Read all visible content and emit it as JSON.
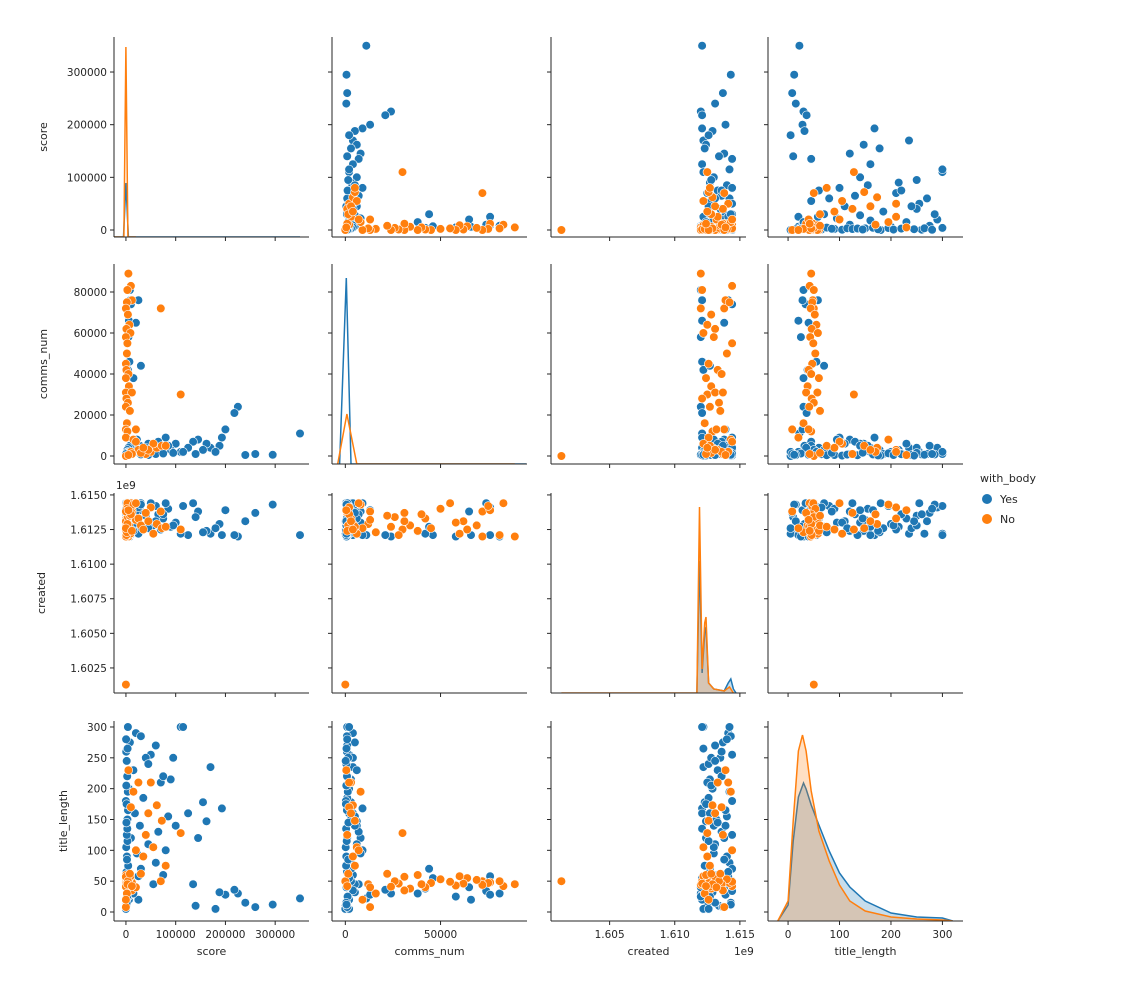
{
  "chart_data": {
    "type": "scatter",
    "kind": "pairplot",
    "title": "",
    "variables": [
      {
        "name": "score",
        "label": "score",
        "x_range": [
          -24000,
          368000
        ],
        "y_range": [
          -13300,
          366500
        ],
        "x_ticks": [
          0,
          100000,
          200000,
          300000
        ],
        "x_tick_labels": [
          "0",
          "100000",
          "200000",
          "300000"
        ],
        "y_ticks": [
          0,
          100000,
          200000,
          300000
        ],
        "y_tick_labels": [
          "0",
          "100000",
          "200000",
          "300000"
        ],
        "offset": ""
      },
      {
        "name": "comms_num",
        "label": "comms_num",
        "x_range": [
          -7000,
          95400
        ],
        "y_range": [
          -3900,
          93660
        ],
        "x_ticks": [
          0,
          50000
        ],
        "x_tick_labels": [
          "0",
          "50000"
        ],
        "y_ticks": [
          0,
          20000,
          40000,
          60000,
          80000
        ],
        "y_tick_labels": [
          "0",
          "20000",
          "40000",
          "60000",
          "80000"
        ],
        "offset": ""
      },
      {
        "name": "created",
        "label": "created",
        "x_range": [
          1.6005,
          1.61547
        ],
        "y_range": [
          1.60069,
          1.61514
        ],
        "x_ticks": [
          1.605,
          1.61,
          1.615
        ],
        "x_tick_labels": [
          "1.605",
          "1.610",
          "1.615"
        ],
        "y_ticks": [
          1.6025,
          1.605,
          1.6075,
          1.61,
          1.6125,
          1.615
        ],
        "y_tick_labels": [
          "1.6025",
          "1.6050",
          "1.6075",
          "1.6100",
          "1.6125",
          "1.6150"
        ],
        "offset": "1e9"
      },
      {
        "name": "title_length",
        "label": "title_length",
        "x_range": [
          -39,
          340
        ],
        "y_range": [
          -14.6,
          309.7
        ],
        "x_ticks": [
          0,
          100,
          200,
          300
        ],
        "x_tick_labels": [
          "0",
          "100",
          "200",
          "300"
        ],
        "y_ticks": [
          0,
          50,
          100,
          150,
          200,
          250,
          300
        ],
        "y_tick_labels": [
          "0",
          "50",
          "100",
          "150",
          "200",
          "250",
          "300"
        ],
        "offset": ""
      }
    ],
    "hue": {
      "title": "with_body",
      "levels": [
        {
          "label": "Yes",
          "color": "#1f77b4"
        },
        {
          "label": "No",
          "color": "#ff7f0e"
        }
      ]
    },
    "points_columns": [
      "score",
      "comms_num",
      "created",
      "title_length"
    ],
    "points": {
      "Yes": [
        [
          350000,
          11000,
          1.6121,
          22
        ],
        [
          225000,
          24000,
          1.612,
          30
        ],
        [
          218000,
          21000,
          1.6121,
          36
        ],
        [
          200000,
          13000,
          1.6139,
          28
        ],
        [
          193000,
          9000,
          1.6121,
          168
        ],
        [
          188000,
          5000,
          1.6129,
          32
        ],
        [
          170000,
          4000,
          1.6122,
          235
        ],
        [
          162000,
          6000,
          1.6124,
          147
        ],
        [
          155000,
          3000,
          1.6123,
          178
        ],
        [
          145000,
          8000,
          1.6138,
          120
        ],
        [
          135000,
          7000,
          1.6144,
          45
        ],
        [
          125000,
          4000,
          1.6121,
          160
        ],
        [
          110000,
          2000,
          1.6122,
          300
        ],
        [
          100000,
          6000,
          1.613,
          140
        ],
        [
          90000,
          3000,
          1.6127,
          215
        ],
        [
          85000,
          5000,
          1.614,
          155
        ],
        [
          80000,
          9000,
          1.6144,
          100
        ],
        [
          75000,
          4000,
          1.6133,
          60
        ],
        [
          70000,
          2000,
          1.6125,
          210
        ],
        [
          65000,
          7000,
          1.6136,
          130
        ],
        [
          60000,
          3000,
          1.6142,
          80
        ],
        [
          55000,
          5000,
          1.6128,
          45
        ],
        [
          50000,
          2000,
          1.6144,
          255
        ],
        [
          45000,
          6000,
          1.6131,
          110
        ],
        [
          40000,
          4000,
          1.6135,
          250
        ],
        [
          35000,
          1000,
          1.6126,
          185
        ],
        [
          30000,
          3000,
          1.6144,
          70
        ],
        [
          28000,
          5000,
          1.6139,
          140
        ],
        [
          25000,
          2000,
          1.6122,
          20
        ],
        [
          22000,
          8000,
          1.613,
          95
        ],
        [
          20000,
          4000,
          1.6141,
          290
        ],
        [
          18000,
          2000,
          1.6127,
          160
        ],
        [
          15000,
          6000,
          1.6133,
          230
        ],
        [
          12000,
          3000,
          1.6144,
          50
        ],
        [
          10000,
          1000,
          1.6124,
          120
        ],
        [
          8000,
          5000,
          1.6137,
          275
        ],
        [
          6000,
          2000,
          1.6129,
          200
        ],
        [
          5000,
          4000,
          1.6144,
          35
        ],
        [
          4000,
          1000,
          1.6121,
          300
        ],
        [
          3000,
          3000,
          1.6132,
          150
        ],
        [
          2000,
          500,
          1.614,
          90
        ],
        [
          1000,
          200,
          1.6125,
          10
        ],
        [
          500,
          800,
          1.6136,
          260
        ],
        [
          0,
          0,
          1.6122,
          5
        ],
        [
          0,
          300,
          1.6144,
          180
        ],
        [
          8000,
          81000,
          1.612,
          30
        ],
        [
          10000,
          74000,
          1.6144,
          34
        ],
        [
          9000,
          76000,
          1.6121,
          28
        ],
        [
          6000,
          66000,
          1.6121,
          20
        ],
        [
          5000,
          58000,
          1.612,
          25
        ],
        [
          7000,
          46000,
          1.6121,
          55
        ],
        [
          4000,
          42000,
          1.6122,
          38
        ],
        [
          3000,
          16000,
          1.6123,
          30
        ],
        [
          30000,
          44000,
          1.6127,
          70
        ],
        [
          20000,
          65000,
          1.6138,
          40
        ],
        [
          25000,
          76000,
          1.6141,
          58
        ],
        [
          15000,
          38000,
          1.6124,
          30
        ],
        [
          115000,
          2000,
          1.6142,
          300
        ],
        [
          60000,
          1000,
          1.6131,
          270
        ],
        [
          45000,
          500,
          1.6126,
          240
        ],
        [
          95000,
          1500,
          1.6128,
          250
        ],
        [
          30000,
          800,
          1.6143,
          285
        ],
        [
          75000,
          1200,
          1.6136,
          220
        ],
        [
          1500,
          300,
          1.6143,
          15
        ],
        [
          2500,
          1200,
          1.6127,
          25
        ],
        [
          800,
          600,
          1.612,
          40
        ],
        [
          3500,
          2000,
          1.6135,
          55
        ],
        [
          1200,
          900,
          1.6141,
          65
        ],
        [
          4500,
          400,
          1.6123,
          75
        ],
        [
          2200,
          1500,
          1.6138,
          85
        ],
        [
          600,
          200,
          1.613,
          105
        ],
        [
          3200,
          700,
          1.6126,
          115
        ],
        [
          1800,
          1100,
          1.6144,
          125
        ],
        [
          2800,
          400,
          1.6121,
          135
        ],
        [
          900,
          1600,
          1.6133,
          145
        ],
        [
          4200,
          800,
          1.6139,
          165
        ],
        [
          1300,
          300,
          1.6124,
          175
        ],
        [
          3800,
          1300,
          1.6142,
          195
        ],
        [
          700,
          500,
          1.6128,
          205
        ],
        [
          2600,
          900,
          1.6136,
          220
        ],
        [
          1600,
          200,
          1.6131,
          245
        ],
        [
          3300,
          600,
          1.6122,
          265
        ],
        [
          400,
          1000,
          1.614,
          280
        ],
        [
          140000,
          1000,
          1.6134,
          10
        ],
        [
          180000,
          2000,
          1.6126,
          5
        ],
        [
          240000,
          500,
          1.6131,
          15
        ],
        [
          260000,
          1000,
          1.6137,
          8
        ],
        [
          295000,
          600,
          1.6143,
          12
        ]
      ],
      "No": [
        [
          0,
          0,
          1.6013,
          50
        ],
        [
          110000,
          30000,
          1.6125,
          128
        ],
        [
          70000,
          72000,
          1.6138,
          50
        ],
        [
          5000,
          89000,
          1.612,
          45
        ],
        [
          10000,
          83000,
          1.6144,
          42
        ],
        [
          3000,
          81000,
          1.6121,
          50
        ],
        [
          12000,
          76000,
          1.6139,
          48
        ],
        [
          2000,
          75000,
          1.6142,
          47
        ],
        [
          0,
          72000,
          1.612,
          44
        ],
        [
          4000,
          69000,
          1.6128,
          52
        ],
        [
          7000,
          64000,
          1.6125,
          55
        ],
        [
          1000,
          62000,
          1.6131,
          46
        ],
        [
          9000,
          60000,
          1.6122,
          58
        ],
        [
          0,
          58000,
          1.613,
          43
        ],
        [
          3000,
          55000,
          1.6144,
          49
        ],
        [
          2000,
          50000,
          1.614,
          53
        ],
        [
          0,
          45000,
          1.6126,
          47
        ],
        [
          1000,
          42000,
          1.6133,
          40
        ],
        [
          5000,
          40000,
          1.6136,
          45
        ],
        [
          0,
          38000,
          1.6124,
          60
        ],
        [
          6000,
          34000,
          1.6128,
          38
        ],
        [
          0,
          31000,
          1.6131,
          57
        ],
        [
          12000,
          31000,
          1.6137,
          35
        ],
        [
          1000,
          28000,
          1.6121,
          46
        ],
        [
          4000,
          26000,
          1.6134,
          50
        ],
        [
          0,
          24000,
          1.6127,
          41
        ],
        [
          8000,
          22000,
          1.6135,
          62
        ],
        [
          2000,
          16000,
          1.6123,
          30
        ],
        [
          0,
          13000,
          1.6138,
          8
        ],
        [
          3000,
          12000,
          1.6129,
          45
        ],
        [
          20000,
          13000,
          1.6132,
          40
        ],
        [
          0,
          9000,
          1.6126,
          20
        ],
        [
          25000,
          3000,
          1.6133,
          210
        ],
        [
          50000,
          2000,
          1.6141,
          210
        ],
        [
          62000,
          4000,
          1.6129,
          173
        ],
        [
          72000,
          5000,
          1.6126,
          148
        ],
        [
          40000,
          1000,
          1.6137,
          125
        ],
        [
          55000,
          6000,
          1.6122,
          105
        ],
        [
          15000,
          8000,
          1.6143,
          195
        ],
        [
          10000,
          2000,
          1.6136,
          170
        ],
        [
          30000,
          1500,
          1.6128,
          62
        ],
        [
          12000,
          1000,
          1.6124,
          42
        ],
        [
          80000,
          5000,
          1.6127,
          75
        ],
        [
          20000,
          7000,
          1.6144,
          100
        ],
        [
          45000,
          3000,
          1.6131,
          160
        ],
        [
          5000,
          500,
          1.6139,
          230
        ],
        [
          35000,
          4000,
          1.6125,
          90
        ]
      ]
    },
    "diag_kde": {
      "density_units": "relative",
      "score": {
        "Yes": {
          "x": [
            -24000,
            -5000,
            0,
            5000,
            350000
          ],
          "density": [
            0,
            0,
            0.27,
            0,
            0
          ]
        },
        "No": {
          "x": [
            -24000,
            -4000,
            0,
            4000,
            20000
          ],
          "density": [
            0,
            0,
            0.95,
            0,
            0
          ]
        }
      },
      "comms_num": {
        "Yes": {
          "x": [
            -3000,
            500,
            3000,
            95000
          ],
          "density": [
            0,
            0.93,
            0,
            0
          ]
        },
        "No": {
          "x": [
            -4000,
            800,
            6000,
            89000
          ],
          "density": [
            0,
            0.25,
            0,
            0
          ]
        }
      },
      "created": {
        "Yes": {
          "x": [
            1.6117,
            1.6119,
            1.6121,
            1.6123,
            1.6124,
            1.6126,
            1.613,
            1.6138,
            1.6141,
            1.6143,
            1.6145,
            1.6147
          ],
          "density": [
            0,
            0.66,
            0.1,
            0.3,
            0.33,
            0.05,
            0.02,
            0.01,
            0.05,
            0.07,
            0.02,
            0
          ]
        },
        "No": {
          "x": [
            1.6013,
            1.6117,
            1.6119,
            1.6121,
            1.6123,
            1.6124,
            1.6126,
            1.613,
            1.6138,
            1.6142,
            1.6145
          ],
          "density": [
            0,
            0,
            0.93,
            0.12,
            0.35,
            0.38,
            0.05,
            0.02,
            0.01,
            0.03,
            0
          ]
        }
      },
      "title_length": {
        "Yes": {
          "x": [
            -20,
            0,
            10,
            20,
            30,
            35,
            45,
            60,
            80,
            100,
            120,
            150,
            200,
            250,
            300,
            320
          ],
          "density": [
            0,
            0.08,
            0.4,
            0.62,
            0.69,
            0.66,
            0.58,
            0.48,
            0.35,
            0.24,
            0.17,
            0.1,
            0.04,
            0.02,
            0.015,
            0
          ]
        },
        "No": {
          "x": [
            -20,
            0,
            10,
            20,
            28,
            35,
            45,
            60,
            80,
            100,
            120,
            150,
            200,
            250,
            300,
            320
          ],
          "density": [
            0,
            0.1,
            0.5,
            0.85,
            0.93,
            0.85,
            0.65,
            0.45,
            0.3,
            0.18,
            0.1,
            0.05,
            0.02,
            0.01,
            0.005,
            0
          ]
        }
      }
    }
  }
}
